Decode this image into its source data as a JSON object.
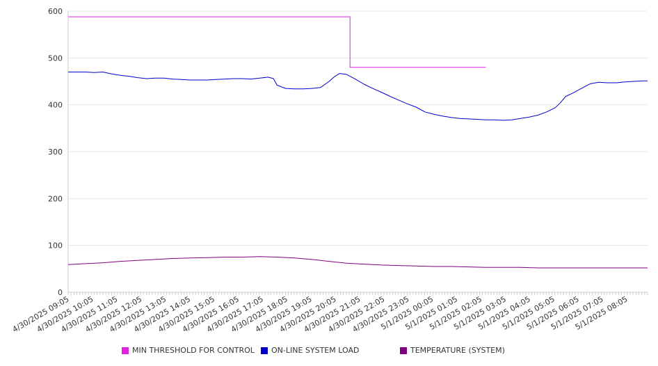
{
  "chart_data": {
    "type": "line",
    "title": "",
    "xlabel": "",
    "ylabel": "",
    "ylim": [
      0,
      600
    ],
    "y_ticks": [
      0,
      100,
      200,
      300,
      400,
      500,
      600
    ],
    "grid": true,
    "legend_position": "bottom",
    "x_labels": [
      "4/30/2025 09:05",
      "4/30/2025 10:05",
      "4/30/2025 11:05",
      "4/30/2025 12:05",
      "4/30/2025 13:05",
      "4/30/2025 14:05",
      "4/30/2025 15:05",
      "4/30/2025 16:05",
      "4/30/2025 17:05",
      "4/30/2025 18:05",
      "4/30/2025 19:05",
      "4/30/2025 20:05",
      "4/30/2025 21:05",
      "4/30/2025 22:05",
      "4/30/2025 23:05",
      "5/1/2025 00:05",
      "5/1/2025 01:05",
      "5/1/2025 02:05",
      "5/1/2025 03:05",
      "5/1/2025 04:05",
      "5/1/2025 05:05",
      "5/1/2025 06:05",
      "5/1/2025 07:05",
      "5/1/2025 08:05"
    ],
    "series": [
      {
        "name": "MIN THRESHOLD FOR CONTROL",
        "color": "#e020e0",
        "step": true,
        "points": [
          [
            0,
            588
          ],
          [
            16.2,
            588
          ],
          [
            16.2,
            480
          ],
          [
            24.0,
            480
          ]
        ]
      },
      {
        "name": "ON-LINE SYSTEM LOAD",
        "color": "#0000cc",
        "points": [
          [
            0,
            470
          ],
          [
            0.5,
            470
          ],
          [
            1.0,
            470
          ],
          [
            1.5,
            469
          ],
          [
            2.0,
            470
          ],
          [
            2.5,
            466
          ],
          [
            3.0,
            463
          ],
          [
            3.5,
            461
          ],
          [
            4.0,
            458
          ],
          [
            4.5,
            456
          ],
          [
            5.0,
            457
          ],
          [
            5.5,
            457
          ],
          [
            6.0,
            455
          ],
          [
            6.5,
            454
          ],
          [
            7.0,
            453
          ],
          [
            7.5,
            453
          ],
          [
            8.0,
            453
          ],
          [
            8.5,
            454
          ],
          [
            9.0,
            455
          ],
          [
            9.5,
            456
          ],
          [
            10.0,
            456
          ],
          [
            10.5,
            455
          ],
          [
            11.0,
            457
          ],
          [
            11.5,
            459
          ],
          [
            11.8,
            456
          ],
          [
            12.0,
            442
          ],
          [
            12.5,
            435
          ],
          [
            13.0,
            434
          ],
          [
            13.5,
            434
          ],
          [
            14.0,
            435
          ],
          [
            14.5,
            437
          ],
          [
            15.0,
            450
          ],
          [
            15.3,
            460
          ],
          [
            15.6,
            467
          ],
          [
            16.0,
            465
          ],
          [
            16.5,
            455
          ],
          [
            17.0,
            444
          ],
          [
            17.5,
            435
          ],
          [
            18.0,
            427
          ],
          [
            18.5,
            418
          ],
          [
            19.0,
            410
          ],
          [
            19.5,
            402
          ],
          [
            20.0,
            395
          ],
          [
            20.5,
            385
          ],
          [
            21.0,
            380
          ],
          [
            21.5,
            376
          ],
          [
            22.0,
            373
          ],
          [
            22.5,
            371
          ],
          [
            23.0,
            370
          ],
          [
            23.5,
            369
          ],
          [
            24.0,
            368
          ],
          [
            24.5,
            368
          ],
          [
            25.0,
            367
          ],
          [
            25.5,
            368
          ],
          [
            26.0,
            371
          ],
          [
            26.5,
            374
          ],
          [
            27.0,
            378
          ],
          [
            27.5,
            385
          ],
          [
            28.0,
            394
          ],
          [
            28.3,
            405
          ],
          [
            28.6,
            418
          ],
          [
            29.0,
            425
          ],
          [
            29.5,
            435
          ],
          [
            30.0,
            445
          ],
          [
            30.5,
            448
          ],
          [
            31.0,
            447
          ],
          [
            31.5,
            447
          ],
          [
            32.0,
            449
          ],
          [
            32.5,
            450
          ],
          [
            33.0,
            451
          ],
          [
            33.3,
            451
          ]
        ]
      },
      {
        "name": "TEMPERATURE (SYSTEM)",
        "color": "#800080",
        "points": [
          [
            0,
            59
          ],
          [
            1,
            61
          ],
          [
            2,
            63
          ],
          [
            3,
            66
          ],
          [
            4,
            68
          ],
          [
            5,
            70
          ],
          [
            6,
            72
          ],
          [
            7,
            73
          ],
          [
            8,
            74
          ],
          [
            9,
            75
          ],
          [
            10,
            75
          ],
          [
            11,
            76
          ],
          [
            12,
            75
          ],
          [
            13,
            73
          ],
          [
            14,
            70
          ],
          [
            15,
            66
          ],
          [
            16,
            62
          ],
          [
            17,
            60
          ],
          [
            18,
            58
          ],
          [
            19,
            57
          ],
          [
            20,
            56
          ],
          [
            21,
            55
          ],
          [
            22,
            55
          ],
          [
            23,
            54
          ],
          [
            24,
            53
          ],
          [
            25,
            53
          ],
          [
            26,
            53
          ],
          [
            27,
            52
          ],
          [
            28,
            52
          ],
          [
            29,
            52
          ],
          [
            30,
            52
          ],
          [
            31,
            52
          ],
          [
            32,
            52
          ],
          [
            33.3,
            52
          ]
        ]
      }
    ]
  }
}
